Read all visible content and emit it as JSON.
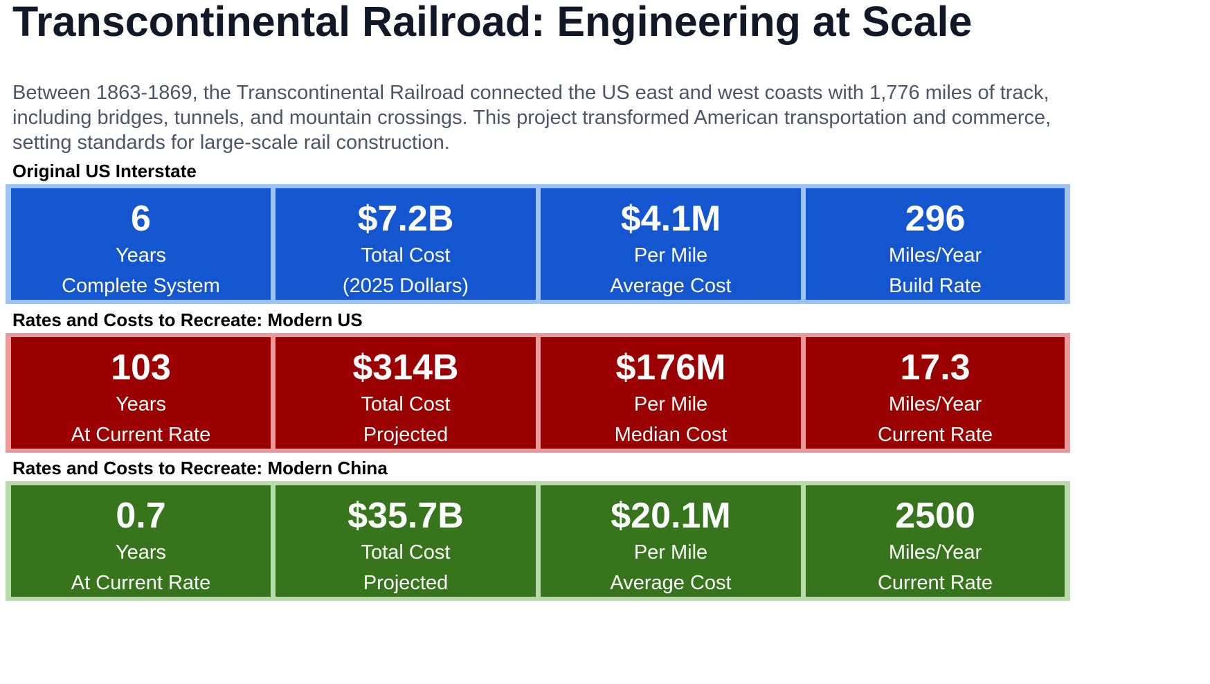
{
  "title": "Transcontinental Railroad: Engineering at Scale",
  "intro": "Between 1863-1869, the Transcontinental Railroad connected the US east and west coasts with 1,776 miles of track, including bridges, tunnels, and mountain crossings. This project transformed American transportation and commerce, setting standards for large-scale rail construction.",
  "colors": {
    "blue_tile": "#1456d0",
    "blue_border": "#9fc2f2",
    "red_tile": "#9b0000",
    "red_border": "#ea9a9a",
    "green_tile": "#36751c",
    "green_border": "#b7dba9"
  },
  "sections": [
    {
      "label": "Original US Interstate",
      "tiles": [
        {
          "value": "6",
          "line1": "Years",
          "line2": "Complete System"
        },
        {
          "value": "$7.2B",
          "line1": "Total Cost",
          "line2": "(2025 Dollars)"
        },
        {
          "value": "$4.1M",
          "line1": "Per Mile",
          "line2": "Average Cost"
        },
        {
          "value": "296",
          "line1": "Miles/Year",
          "line2": "Build Rate"
        }
      ]
    },
    {
      "label": "Rates and Costs to Recreate: Modern US",
      "tiles": [
        {
          "value": "103",
          "line1": "Years",
          "line2": "At Current Rate"
        },
        {
          "value": "$314B",
          "line1": "Total Cost",
          "line2": "Projected"
        },
        {
          "value": "$176M",
          "line1": "Per Mile",
          "line2": "Median Cost"
        },
        {
          "value": "17.3",
          "line1": "Miles/Year",
          "line2": "Current Rate"
        }
      ]
    },
    {
      "label": "Rates and Costs to Recreate: Modern China",
      "tiles": [
        {
          "value": "0.7",
          "line1": "Years",
          "line2": "At Current Rate"
        },
        {
          "value": "$35.7B",
          "line1": "Total Cost",
          "line2": "Projected"
        },
        {
          "value": "$20.1M",
          "line1": "Per Mile",
          "line2": "Average Cost"
        },
        {
          "value": "2500",
          "line1": "Miles/Year",
          "line2": "Current Rate"
        }
      ]
    }
  ]
}
